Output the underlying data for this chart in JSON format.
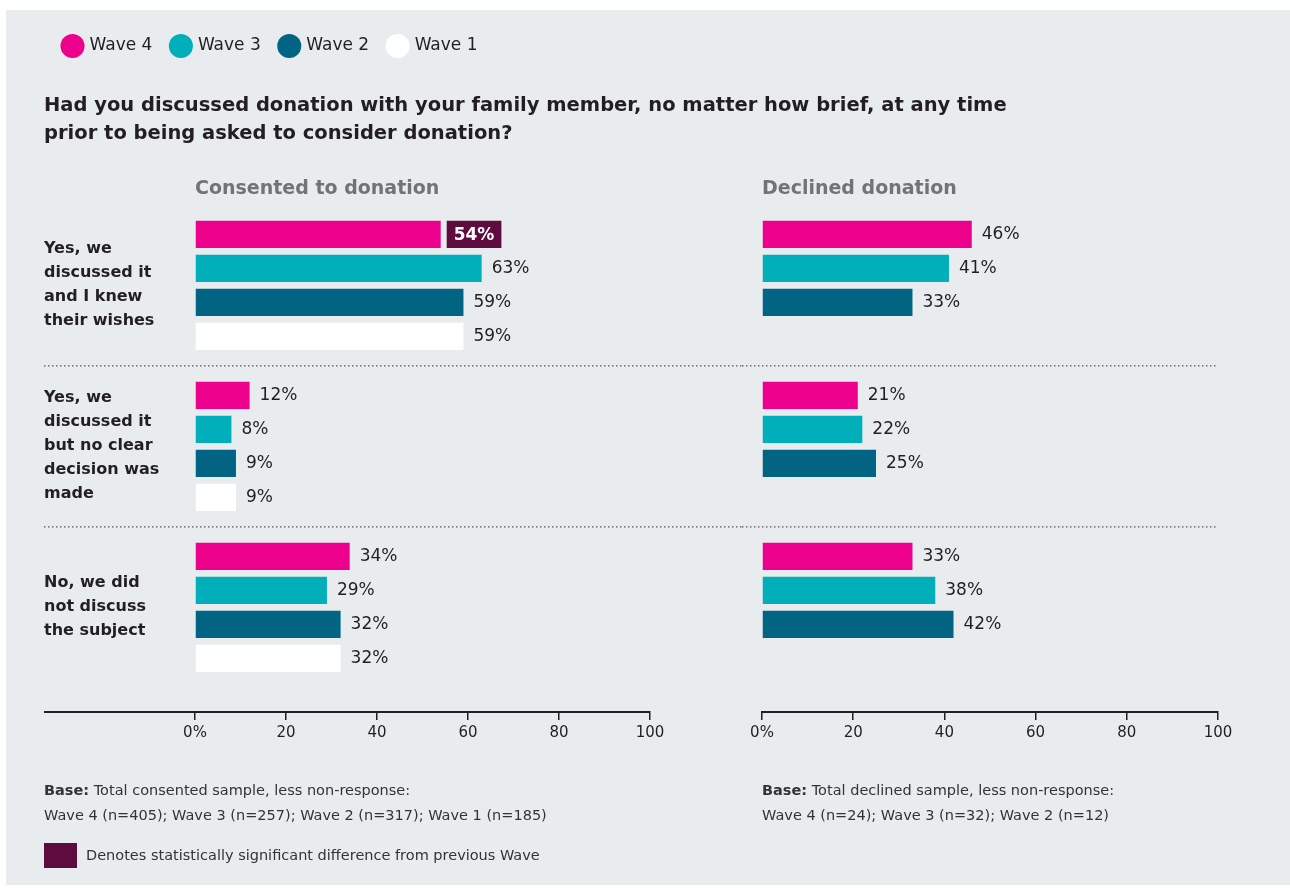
{
  "chart_data": [
    {
      "type": "bar",
      "orientation": "horizontal",
      "title": "Had you discussed donation with your family member, no matter how brief, at any time prior to being asked to consider donation?",
      "subtitle": "Consented to donation",
      "legend": "top left",
      "grid": "y",
      "categories": [
        "Yes, we discussed it and I knew their wishes",
        "Yes, we discussed it but no clear decision was made",
        "No, we did not discuss the subject"
      ],
      "series": [
        {
          "name": "Wave 4",
          "color": "#ec008c",
          "values": [
            54,
            12,
            34
          ],
          "value_labels": [
            null,
            "12%",
            "34%"
          ]
        },
        {
          "name": "Wave 3",
          "color": "#00afba",
          "values": [
            63,
            8,
            29
          ],
          "value_labels": [
            "63%",
            "8%",
            "29%"
          ]
        },
        {
          "name": "Wave 2",
          "color": "#006482",
          "values": [
            59,
            9,
            32
          ],
          "value_labels": [
            "59%",
            "9%",
            "32%"
          ]
        },
        {
          "name": "Wave 1",
          "color": "#ffffff",
          "values": [
            59,
            9,
            32
          ],
          "value_labels": [
            "59%",
            "9%",
            "32%"
          ]
        }
      ],
      "xlim": [
        0,
        100
      ],
      "xticks": [
        {
          "value": 0,
          "label": "0%"
        },
        20,
        40,
        60,
        80,
        100
      ],
      "annotations": [
        {
          "text": "54%",
          "x": 54
        },
        "Base: Total consented sample, less non-response:\nWave 4 (n=405); Wave 3 (n=257); Wave 2 (n=317); Wave 1 (n=185)",
        "Denotes statistically significant difference from previous Wave"
      ]
    },
    {
      "type": "bar",
      "orientation": "horizontal",
      "title": "Declined donation",
      "grid": "y",
      "tick_labels": "x",
      "categories": [
        null,
        null,
        null
      ],
      "series": [
        {
          "color": "#ec008c",
          "values": [
            46,
            21,
            33
          ],
          "value_labels": [
            "46%",
            "21%",
            "33%"
          ]
        },
        {
          "color": "#00afba",
          "values": [
            41,
            22,
            38
          ],
          "value_labels": [
            "41%",
            "22%",
            "38%"
          ]
        },
        {
          "color": "#006482",
          "values": [
            33,
            25,
            42
          ],
          "value_labels": [
            "33%",
            "25%",
            "42%"
          ]
        }
      ],
      "xlim": [
        0,
        100
      ],
      "xticks": [
        {
          "value": 0,
          "label": "0%"
        },
        20,
        40,
        60,
        80,
        100
      ],
      "annotations": [
        "Base: Total declined sample, less non-response:\nWave 4 (n=24); Wave 3 (n=32); Wave 2 (n=12)"
      ]
    }
  ]
}
